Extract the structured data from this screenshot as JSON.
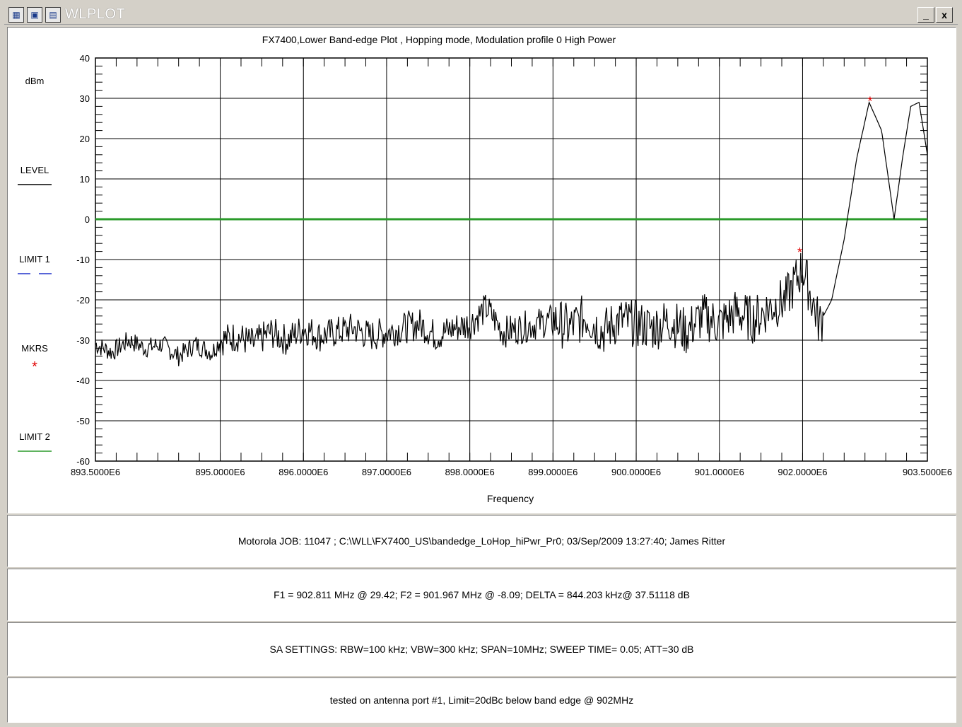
{
  "window": {
    "title": "WLPLOT",
    "minimize_label": "_",
    "close_label": "x",
    "icons": [
      "chart-app-icon",
      "window-menu-icon",
      "window-list-icon"
    ]
  },
  "chart_data": {
    "type": "line",
    "title": "FX7400,Lower Band-edge Plot , Hopping mode, Modulation profile 0  High Power",
    "xlabel": "Frequency",
    "ylabel": "dBm",
    "xlim": [
      893.5,
      903.5
    ],
    "ylim": [
      -60,
      40
    ],
    "x_unit": "MHz",
    "y_ticks": [
      "40",
      "30",
      "20",
      "10",
      "0",
      "-10",
      "-20",
      "-30",
      "-40",
      "-50",
      "-60"
    ],
    "x_ticks": [
      {
        "x": 893.5,
        "label": "893.5000E6"
      },
      {
        "x": 895.0,
        "label": "895.0000E6"
      },
      {
        "x": 896.0,
        "label": "896.0000E6"
      },
      {
        "x": 897.0,
        "label": "897.0000E6"
      },
      {
        "x": 898.0,
        "label": "898.0000E6"
      },
      {
        "x": 899.0,
        "label": "899.0000E6"
      },
      {
        "x": 900.0,
        "label": "900.0000E6"
      },
      {
        "x": 901.0,
        "label": "901.0000E6"
      },
      {
        "x": 902.0,
        "label": "902.0000E6"
      },
      {
        "x": 903.5,
        "label": "903.5000E6"
      }
    ],
    "grid": true,
    "legend": [
      {
        "label": "LEVEL",
        "style": "solid",
        "color": "#000000"
      },
      {
        "label": "LIMIT 1",
        "style": "dashed",
        "color": "#2233cc"
      },
      {
        "label": "MKRS",
        "style": "marker",
        "color": "#e00000"
      },
      {
        "label": "LIMIT 2",
        "style": "solid",
        "color": "#2a9a2a"
      }
    ],
    "limit2_level": 0,
    "series": [
      {
        "name": "LEVEL",
        "color": "#000000",
        "x": [
          893.5,
          893.7,
          893.9,
          894.1,
          894.3,
          894.5,
          894.7,
          894.9,
          895.0,
          895.2,
          895.4,
          895.6,
          895.8,
          896.0,
          896.2,
          896.4,
          896.6,
          896.8,
          897.0,
          897.2,
          897.4,
          897.6,
          897.8,
          898.0,
          898.2,
          898.4,
          898.6,
          898.8,
          899.0,
          899.2,
          899.4,
          899.6,
          899.8,
          900.0,
          900.2,
          900.4,
          900.6,
          900.8,
          901.0,
          901.2,
          901.4,
          901.6,
          901.8,
          902.0,
          902.2,
          902.35,
          902.5,
          902.65,
          902.8,
          902.95,
          903.1,
          903.2,
          903.3,
          903.4,
          903.5
        ],
        "y": [
          -31,
          -33,
          -30,
          -32,
          -31,
          -34,
          -31,
          -33,
          -30,
          -29,
          -31,
          -28,
          -30,
          -27,
          -29,
          -28,
          -27,
          -29,
          -28,
          -27,
          -26,
          -29,
          -27,
          -26,
          -22,
          -28,
          -27,
          -26,
          -25,
          -27,
          -24,
          -28,
          -25,
          -26,
          -27,
          -25,
          -28,
          -24,
          -26,
          -23,
          -25,
          -22,
          -20,
          -12,
          -26,
          -20,
          -5,
          15,
          29,
          22,
          0,
          15,
          28,
          29,
          16
        ]
      }
    ],
    "markers": [
      {
        "x": 902.811,
        "y": 29.42
      },
      {
        "x": 901.967,
        "y": -8.09
      }
    ]
  },
  "info_panels": [
    "Motorola  JOB: 11047    ;  C:\\WLL\\FX7400_US\\bandedge_LoHop_hiPwr_Pr0;    03/Sep/2009 13:27:40; James Ritter",
    "F1 = 902.811 MHz @ 29.42;   F2 = 901.967 MHz @ -8.09;   DELTA = 844.203 kHz@ 37.51118 dB",
    "SA SETTINGS: RBW=100 kHz; VBW=300 kHz; SPAN=10MHz; SWEEP TIME= 0.05; ATT=30 dB",
    "tested on antenna port #1, Limit=20dBc below band edge @ 902MHz"
  ]
}
